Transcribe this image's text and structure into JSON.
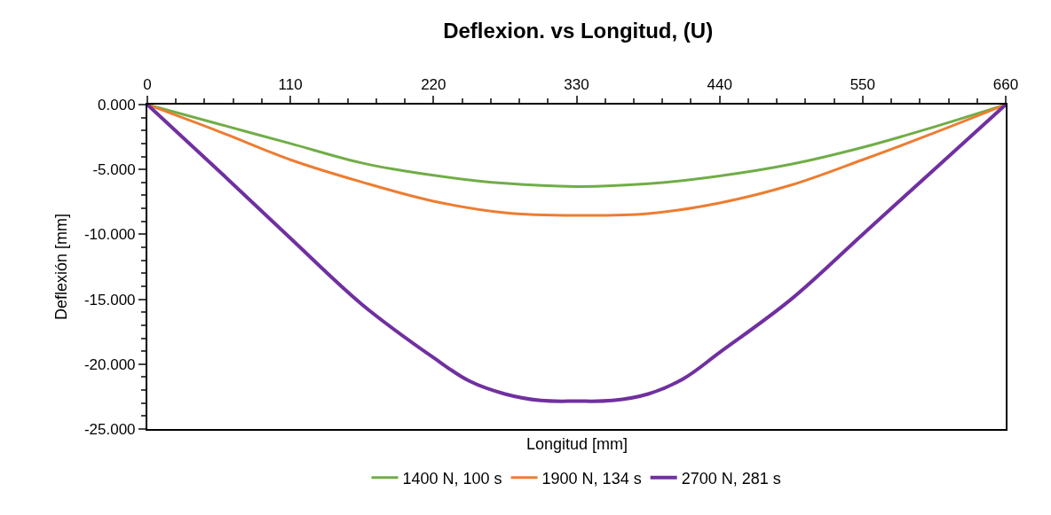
{
  "chart_data": {
    "type": "line",
    "title": "Deflexion. vs Longitud, (U)",
    "xlabel": "Longitud [mm]",
    "ylabel": "Deflexión [mm]",
    "x": [
      0,
      55,
      110,
      165,
      220,
      275,
      330,
      385,
      440,
      495,
      550,
      605,
      660
    ],
    "series": [
      {
        "name": "1400 N, 100 s",
        "color": "#70ad47",
        "values": [
          0,
          -1.5,
          -3.0,
          -4.5,
          -5.45,
          -6.07,
          -6.31,
          -6.1,
          -5.5,
          -4.6,
          -3.3,
          -1.72,
          0
        ]
      },
      {
        "name": "1900 N, 134 s",
        "color": "#ed7d31",
        "values": [
          0,
          -2.07,
          -4.25,
          -5.97,
          -7.44,
          -8.33,
          -8.54,
          -8.4,
          -7.58,
          -6.2,
          -4.25,
          -2.18,
          0
        ]
      },
      {
        "name": "2700 N, 281 s",
        "color": "#7030a0",
        "x": [
          0,
          55,
          110,
          165,
          220,
          247.5,
          275,
          302.5,
          330,
          357.5,
          385,
          412.5,
          440,
          495,
          550,
          605,
          660
        ],
        "values": [
          0,
          -5.1,
          -10.3,
          -15.4,
          -19.5,
          -21.3,
          -22.3,
          -22.8,
          -22.85,
          -22.8,
          -22.3,
          -21.1,
          -19.1,
          -15.0,
          -10.0,
          -5.0,
          0
        ]
      }
    ],
    "xlim": [
      0,
      660
    ],
    "xticks": [
      0,
      110,
      220,
      330,
      440,
      550,
      660
    ],
    "ylim": [
      -25,
      0
    ],
    "yticks": [
      {
        "value": 0,
        "label": "0.000"
      },
      {
        "value": -5,
        "label": "-5.000"
      },
      {
        "value": -10,
        "label": "-10.000"
      },
      {
        "value": -15,
        "label": "-15.000"
      },
      {
        "value": -20,
        "label": "-20.000"
      },
      {
        "value": -25,
        "label": "-25.000"
      }
    ],
    "legend": "bottom",
    "marker": "none",
    "line_style": "solid"
  }
}
